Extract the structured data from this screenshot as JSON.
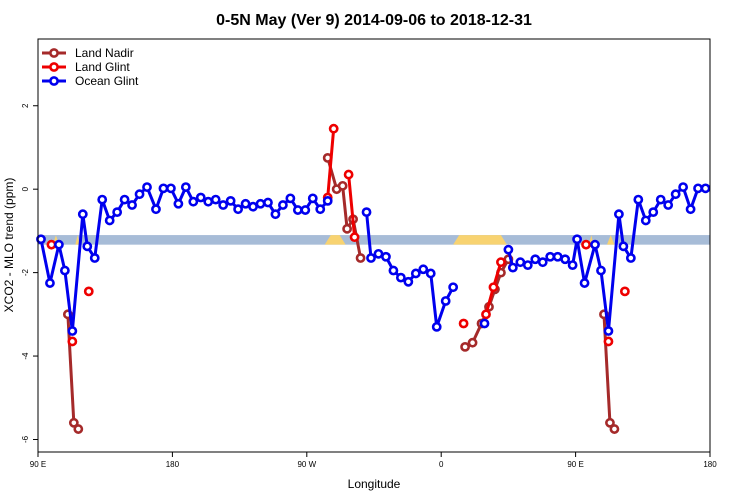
{
  "chart_data": {
    "type": "line",
    "title": "0-5N May (Ver 9)   2014-09-06 to 2018-12-31",
    "xlabel": "Longitude",
    "ylabel": "XCO2 - MLO trend (ppm)",
    "x_ticks": [
      {
        "value": 0,
        "label": "90 E"
      },
      {
        "value": 90,
        "label": "180"
      },
      {
        "value": 180,
        "label": "90 W"
      },
      {
        "value": 270,
        "label": "0"
      },
      {
        "value": 360,
        "label": "90 E"
      },
      {
        "value": 450,
        "label": "180"
      }
    ],
    "y_ticks": [
      {
        "value": 2,
        "label": "2"
      },
      {
        "value": 0,
        "label": "0"
      },
      {
        "value": -2,
        "label": "-2"
      },
      {
        "value": -4,
        "label": "-4"
      },
      {
        "value": -6,
        "label": "-6"
      }
    ],
    "xlim": [
      0,
      450
    ],
    "ylim": [
      -6.3,
      3.6
    ],
    "grid": false,
    "legend_position": "top-left",
    "colors": {
      "land_nadir": "#a52a2a",
      "land_glint": "#ee0000",
      "ocean_glint": "#0000ee",
      "surface_ocean": "#a7bcd7",
      "surface_land": "#f8d371"
    },
    "surface_band": {
      "y_low": -1.33,
      "y_high": -1.1,
      "land_ranges": [
        [
          10,
          14
        ],
        [
          25,
          28
        ],
        [
          192,
          206
        ],
        [
          278,
          314
        ],
        [
          369,
          372
        ],
        [
          381,
          386
        ]
      ]
    },
    "series": [
      {
        "name": "Land Nadir",
        "color": "#a52a2a",
        "points": [
          [
            20,
            -3.0
          ],
          [
            24,
            -5.6
          ],
          [
            27,
            -5.75
          ],
          null,
          [
            194,
            0.75
          ],
          [
            200,
            0.0
          ],
          [
            204,
            0.08
          ],
          [
            207,
            -0.95
          ],
          [
            211,
            -0.72
          ],
          [
            216,
            -1.65
          ],
          null,
          [
            286,
            -3.78
          ],
          [
            291,
            -3.68
          ],
          [
            297,
            -3.22
          ],
          [
            302,
            -2.82
          ],
          [
            306,
            -2.4
          ],
          [
            310,
            -2.0
          ],
          [
            315,
            -1.68
          ],
          null,
          [
            379,
            -3.0
          ],
          [
            383,
            -5.6
          ],
          [
            386,
            -5.75
          ]
        ]
      },
      {
        "name": "Land Glint",
        "color": "#ee0000",
        "points": [
          [
            9,
            -1.33
          ],
          null,
          [
            23,
            -3.65
          ],
          null,
          [
            34,
            -2.45
          ],
          null,
          [
            194,
            -0.2
          ],
          [
            198,
            1.45
          ],
          null,
          [
            208,
            0.35
          ],
          [
            212,
            -1.15
          ],
          null,
          [
            285,
            -3.22
          ],
          null,
          [
            300,
            -3.0
          ],
          [
            305,
            -2.35
          ],
          [
            310,
            -1.75
          ],
          null,
          [
            367,
            -1.33
          ],
          null,
          [
            382,
            -3.65
          ],
          null,
          [
            393,
            -2.45
          ]
        ]
      },
      {
        "name": "Ocean Glint",
        "color": "#0000ee",
        "points": [
          [
            2,
            -1.2
          ],
          [
            8,
            -2.25
          ],
          [
            14,
            -1.33
          ],
          [
            18,
            -1.95
          ],
          [
            23,
            -3.4
          ],
          [
            30,
            -0.6
          ],
          [
            33,
            -1.37
          ],
          [
            38,
            -1.65
          ],
          [
            43,
            -0.25
          ],
          [
            48,
            -0.75
          ],
          [
            53,
            -0.55
          ],
          [
            58,
            -0.25
          ],
          [
            63,
            -0.38
          ],
          [
            68,
            -0.12
          ],
          [
            73,
            0.05
          ],
          [
            79,
            -0.48
          ],
          [
            84,
            0.02
          ],
          [
            89,
            0.02
          ],
          [
            94,
            -0.35
          ],
          [
            99,
            0.05
          ],
          [
            104,
            -0.3
          ],
          [
            109,
            -0.2
          ],
          [
            114,
            -0.3
          ],
          [
            119,
            -0.25
          ],
          [
            124,
            -0.38
          ],
          [
            129,
            -0.28
          ],
          [
            134,
            -0.48
          ],
          [
            139,
            -0.35
          ],
          [
            144,
            -0.42
          ],
          [
            149,
            -0.35
          ],
          [
            154,
            -0.32
          ],
          [
            159,
            -0.6
          ],
          [
            164,
            -0.38
          ],
          [
            169,
            -0.22
          ],
          [
            174,
            -0.5
          ],
          [
            179,
            -0.5
          ],
          [
            184,
            -0.22
          ],
          [
            189,
            -0.48
          ],
          [
            194,
            -0.28
          ],
          null,
          [
            220,
            -0.55
          ],
          [
            223,
            -1.65
          ],
          [
            228,
            -1.55
          ],
          [
            233,
            -1.62
          ],
          [
            238,
            -1.95
          ],
          [
            243,
            -2.12
          ],
          [
            248,
            -2.22
          ],
          [
            253,
            -2.02
          ],
          [
            258,
            -1.92
          ],
          [
            263,
            -2.02
          ],
          [
            267,
            -3.3
          ],
          [
            273,
            -2.68
          ],
          [
            278,
            -2.35
          ],
          null,
          [
            299,
            -3.22
          ],
          null,
          [
            315,
            -1.45
          ],
          [
            318,
            -1.88
          ],
          [
            323,
            -1.75
          ],
          [
            328,
            -1.82
          ],
          [
            333,
            -1.68
          ],
          [
            338,
            -1.75
          ],
          [
            343,
            -1.62
          ],
          [
            348,
            -1.62
          ],
          [
            353,
            -1.68
          ],
          [
            358,
            -1.82
          ],
          [
            361,
            -1.2
          ],
          [
            366,
            -2.25
          ],
          [
            373,
            -1.33
          ],
          [
            377,
            -1.95
          ],
          [
            382,
            -3.4
          ],
          [
            389,
            -0.6
          ],
          [
            392,
            -1.37
          ],
          [
            397,
            -1.65
          ],
          [
            402,
            -0.25
          ],
          [
            407,
            -0.75
          ],
          [
            412,
            -0.55
          ],
          [
            417,
            -0.25
          ],
          [
            422,
            -0.38
          ],
          [
            427,
            -0.12
          ],
          [
            432,
            0.05
          ],
          [
            437,
            -0.48
          ],
          [
            442,
            0.02
          ],
          [
            447,
            0.02
          ]
        ]
      }
    ]
  }
}
